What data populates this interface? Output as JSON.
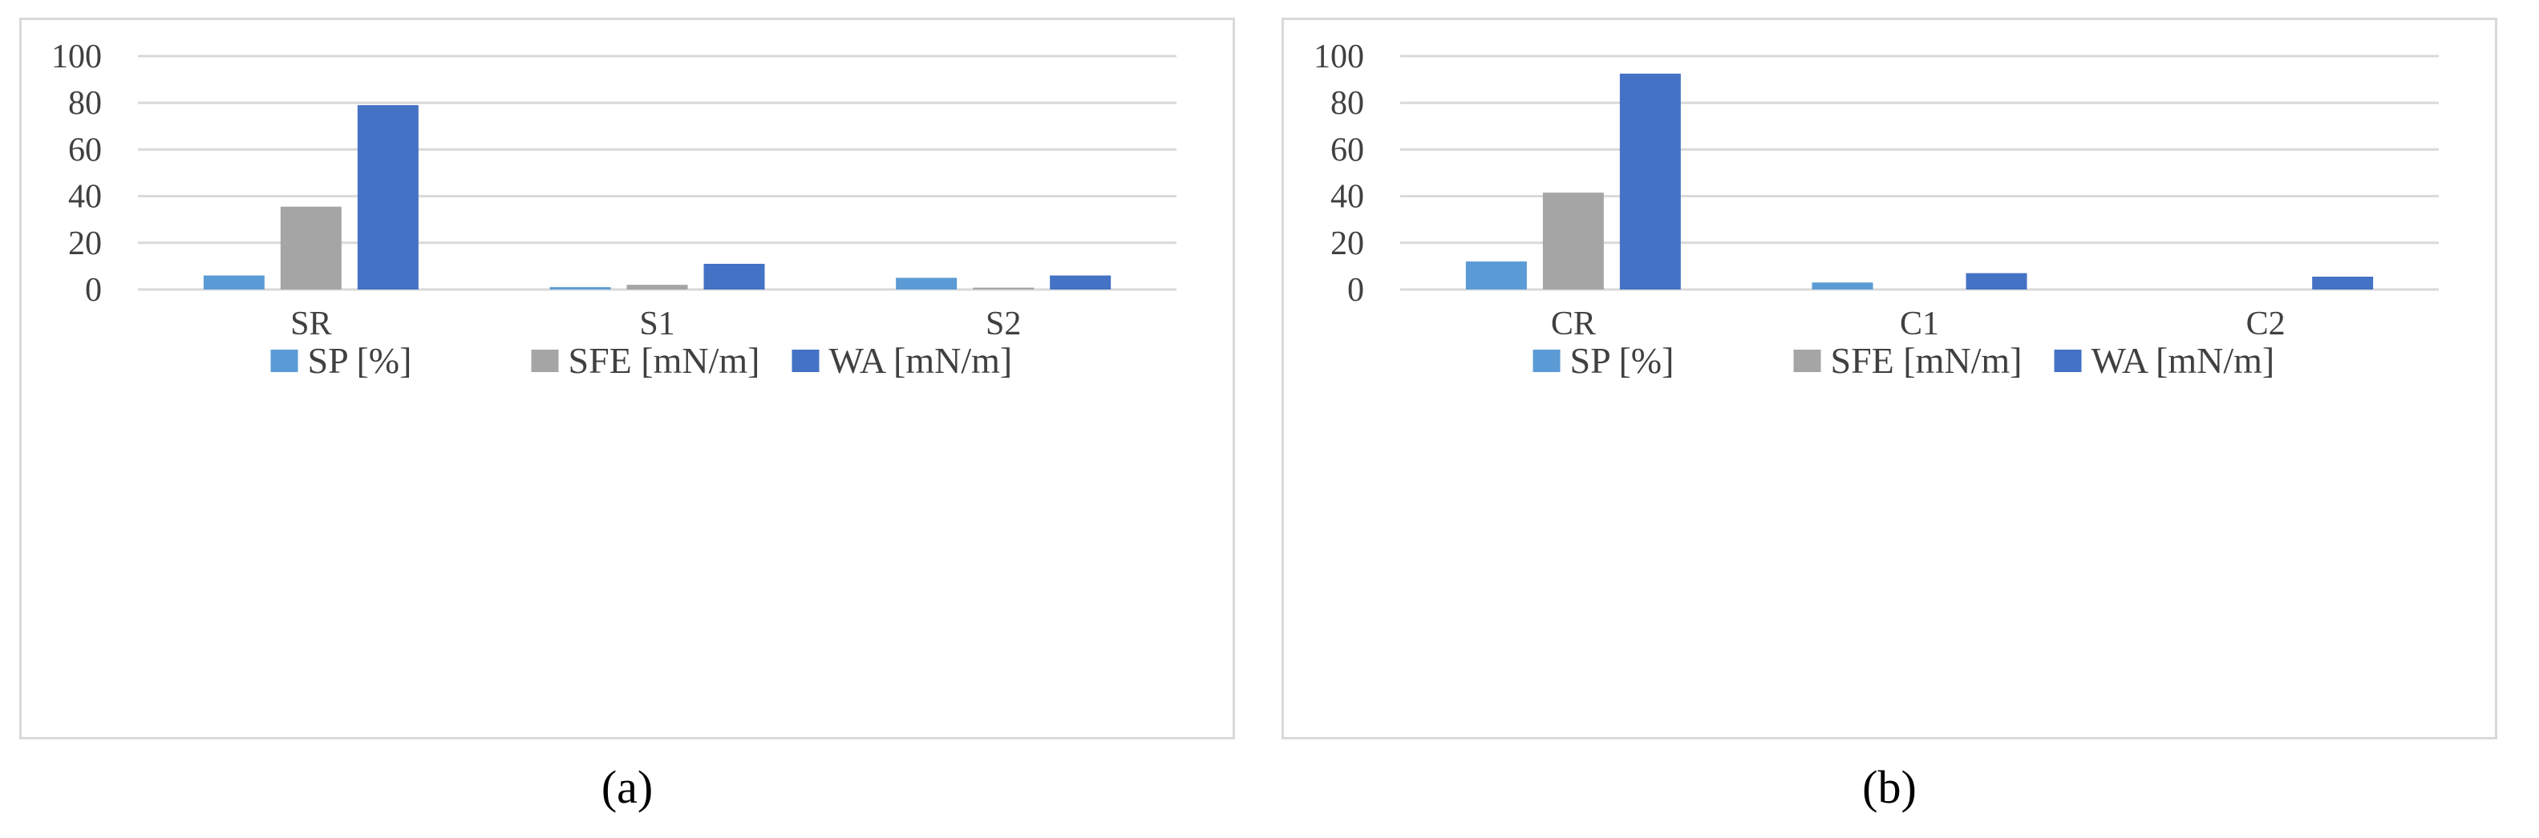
{
  "chart_data": [
    {
      "type": "bar",
      "panel_label": "(a)",
      "categories": [
        "SR",
        "S1",
        "S2"
      ],
      "series": [
        {
          "name": "SP [%]",
          "color": "#5b9bd5",
          "values": [
            6,
            1,
            5
          ]
        },
        {
          "name": "SFE [mN/m]",
          "color": "#a5a5a5",
          "values": [
            35.5,
            2,
            0.8
          ]
        },
        {
          "name": "WA [mN/m]",
          "color": "#4472c4",
          "values": [
            79,
            11,
            6
          ]
        }
      ],
      "yticks": [
        0,
        20,
        40,
        60,
        80,
        100
      ],
      "ylim": [
        0,
        100
      ],
      "grid": true,
      "legend_position": "bottom"
    },
    {
      "type": "bar",
      "panel_label": "(b)",
      "categories": [
        "CR",
        "C1",
        "C2"
      ],
      "series": [
        {
          "name": "SP [%]",
          "color": "#5b9bd5",
          "values": [
            12,
            3,
            0
          ]
        },
        {
          "name": "SFE [mN/m]",
          "color": "#a5a5a5",
          "values": [
            41.5,
            0,
            0
          ]
        },
        {
          "name": "WA [mN/m]",
          "color": "#4472c4",
          "values": [
            92.5,
            7,
            5.5
          ]
        }
      ],
      "yticks": [
        0,
        20,
        40,
        60,
        80,
        100
      ],
      "ylim": [
        0,
        100
      ],
      "grid": true,
      "legend_position": "bottom"
    }
  ]
}
